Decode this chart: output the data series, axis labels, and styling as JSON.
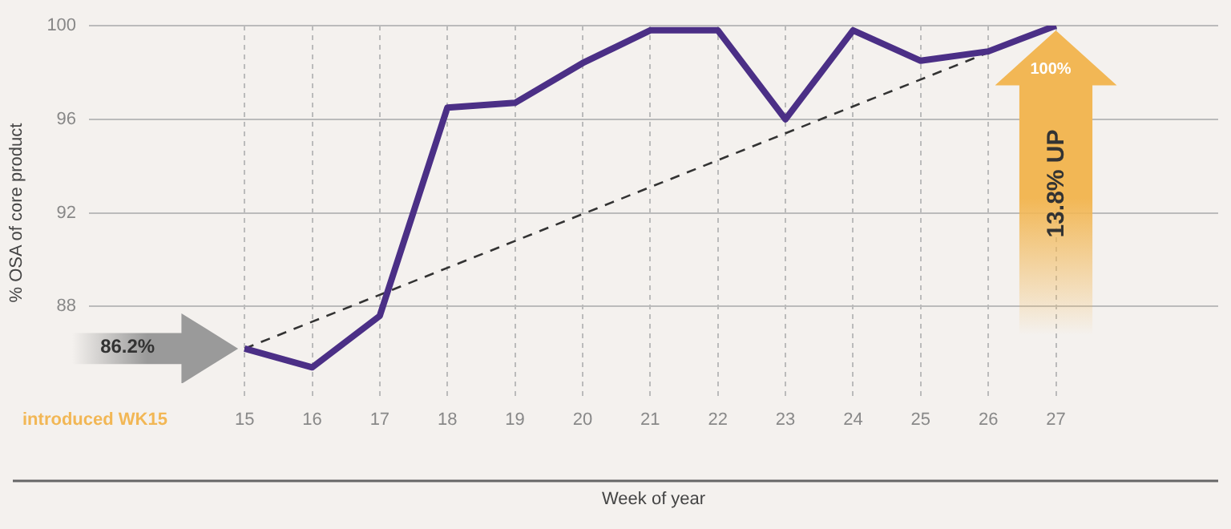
{
  "chart_data": {
    "type": "line",
    "xlabel": "Week of year",
    "ylabel": "% OSA of core product",
    "x": [
      15,
      16,
      17,
      18,
      19,
      20,
      21,
      22,
      23,
      24,
      25,
      26,
      27
    ],
    "series": [
      {
        "color": "#4b2f86",
        "values": [
          86.2,
          85.4,
          87.6,
          96.5,
          96.7,
          98.4,
          99.8,
          99.8,
          96.0,
          99.8,
          98.5,
          98.9,
          100
        ]
      },
      {
        "color": "#333333",
        "line_style": "dashed",
        "x": [
          15,
          27
        ],
        "values": [
          86.2,
          100
        ]
      }
    ],
    "xlim": [
      12.7,
      29.4
    ],
    "xticks": [
      15,
      16,
      17,
      18,
      19,
      20,
      21,
      22,
      23,
      24,
      25,
      26,
      27
    ],
    "ylim": [
      84,
      100
    ],
    "yticks": [
      88,
      92,
      96,
      100
    ],
    "grid": true,
    "legend": false,
    "marker": "none",
    "line_style": "solid",
    "annotations": [
      "86.2%",
      "100%",
      "13.8% UP",
      "introduced WK15"
    ]
  }
}
